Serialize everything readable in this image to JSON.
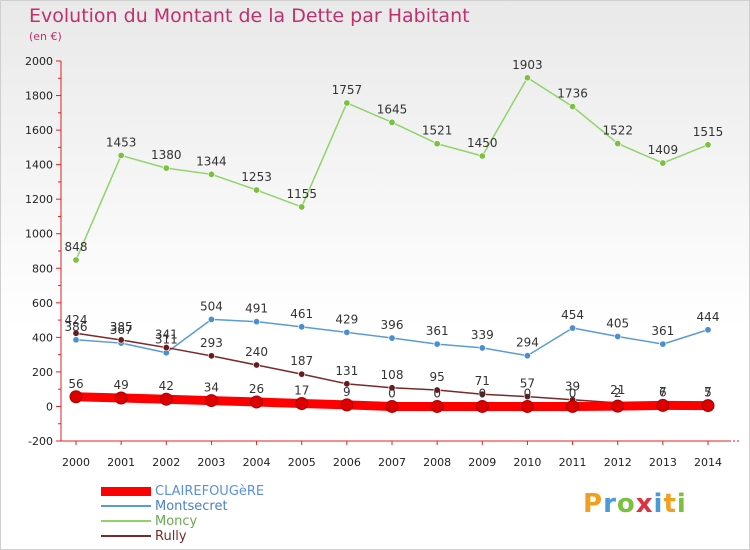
{
  "header": {
    "title": "Evolution du Montant de la Dette par Habitant",
    "unit": "(en €)"
  },
  "logo": {
    "letters": [
      "P",
      "r",
      "o",
      "x",
      "i",
      "t",
      "i"
    ],
    "colors": [
      "#f0a020",
      "#4a9ad8",
      "#7cc040",
      "#e03040",
      "#4a9ad8",
      "#f0a020",
      "#7cc040"
    ]
  },
  "chart_data": {
    "type": "line",
    "x": [
      "2000",
      "2001",
      "2002",
      "2003",
      "2004",
      "2005",
      "2006",
      "2007",
      "2008",
      "2009",
      "2010",
      "2011",
      "2012",
      "2013",
      "2014"
    ],
    "ylim": [
      -200,
      2000
    ],
    "yticks": [
      "-200",
      "0",
      "200",
      "400",
      "600",
      "800",
      "1000",
      "1200",
      "1400",
      "1600",
      "1800",
      "2000"
    ],
    "grid": false,
    "legend_position": "bottom-left",
    "series": [
      {
        "name": "CLAIREFOUGèRE",
        "color": "#ff0000",
        "marker_color": "#dd0000",
        "labels_color": "#333333",
        "values": [
          56,
          49,
          42,
          34,
          26,
          17,
          9,
          0,
          0,
          0,
          0,
          0,
          2,
          6,
          5
        ],
        "labels": [
          "56",
          "49",
          "42",
          "34",
          "26",
          "17",
          "9",
          "0",
          "0",
          "0",
          "0",
          "0",
          "2",
          "6",
          "5"
        ]
      },
      {
        "name": "Montsecret",
        "color": "#5b9bd5",
        "marker_color": "#4a8fd0",
        "values": [
          386,
          367,
          311,
          504,
          491,
          461,
          429,
          396,
          361,
          339,
          294,
          454,
          405,
          361,
          444
        ],
        "labels": [
          "386",
          "367",
          "311",
          "504",
          "491",
          "461",
          "429",
          "396",
          "361",
          "339",
          "294",
          "454",
          "405",
          "361",
          "444"
        ]
      },
      {
        "name": "Moncy",
        "color": "#8fd46a",
        "marker_color": "#7cc040",
        "values": [
          848,
          1453,
          1380,
          1344,
          1253,
          1155,
          1757,
          1645,
          1521,
          1450,
          1903,
          1736,
          1522,
          1409,
          1515
        ],
        "labels": [
          "848",
          "1453",
          "1380",
          "1344",
          "1253",
          "1155",
          "1757",
          "1645",
          "1521",
          "1450",
          "1903",
          "1736",
          "1522",
          "1409",
          "1515"
        ]
      },
      {
        "name": "Rully",
        "color": "#7a2a2a",
        "marker_color": "#6a1a1a",
        "values": [
          424,
          385,
          341,
          293,
          240,
          187,
          131,
          108,
          95,
          71,
          57,
          39,
          21,
          7,
          7
        ],
        "labels": [
          "424",
          "385",
          "341",
          "293",
          "240",
          "187",
          "131",
          "108",
          "95",
          "71",
          "57",
          "39",
          "21",
          "7",
          "7"
        ]
      }
    ]
  }
}
